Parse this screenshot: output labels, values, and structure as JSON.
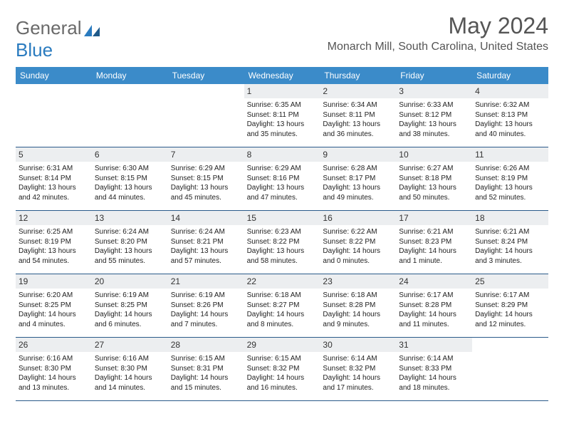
{
  "logo": {
    "part1": "General",
    "part2": "Blue"
  },
  "header": {
    "month_title": "May 2024",
    "location": "Monarch Mill, South Carolina, United States"
  },
  "days_of_week": [
    "Sunday",
    "Monday",
    "Tuesday",
    "Wednesday",
    "Thursday",
    "Friday",
    "Saturday"
  ],
  "colors": {
    "header_bg": "#3b8bc9",
    "daynum_bg": "#eceef0",
    "row_border": "#2a5a8a"
  },
  "weeks": [
    [
      {
        "empty": true
      },
      {
        "empty": true
      },
      {
        "empty": true
      },
      {
        "num": "1",
        "sunrise": "Sunrise: 6:35 AM",
        "sunset": "Sunset: 8:11 PM",
        "daylight": "Daylight: 13 hours and 35 minutes."
      },
      {
        "num": "2",
        "sunrise": "Sunrise: 6:34 AM",
        "sunset": "Sunset: 8:11 PM",
        "daylight": "Daylight: 13 hours and 36 minutes."
      },
      {
        "num": "3",
        "sunrise": "Sunrise: 6:33 AM",
        "sunset": "Sunset: 8:12 PM",
        "daylight": "Daylight: 13 hours and 38 minutes."
      },
      {
        "num": "4",
        "sunrise": "Sunrise: 6:32 AM",
        "sunset": "Sunset: 8:13 PM",
        "daylight": "Daylight: 13 hours and 40 minutes."
      }
    ],
    [
      {
        "num": "5",
        "sunrise": "Sunrise: 6:31 AM",
        "sunset": "Sunset: 8:14 PM",
        "daylight": "Daylight: 13 hours and 42 minutes."
      },
      {
        "num": "6",
        "sunrise": "Sunrise: 6:30 AM",
        "sunset": "Sunset: 8:15 PM",
        "daylight": "Daylight: 13 hours and 44 minutes."
      },
      {
        "num": "7",
        "sunrise": "Sunrise: 6:29 AM",
        "sunset": "Sunset: 8:15 PM",
        "daylight": "Daylight: 13 hours and 45 minutes."
      },
      {
        "num": "8",
        "sunrise": "Sunrise: 6:29 AM",
        "sunset": "Sunset: 8:16 PM",
        "daylight": "Daylight: 13 hours and 47 minutes."
      },
      {
        "num": "9",
        "sunrise": "Sunrise: 6:28 AM",
        "sunset": "Sunset: 8:17 PM",
        "daylight": "Daylight: 13 hours and 49 minutes."
      },
      {
        "num": "10",
        "sunrise": "Sunrise: 6:27 AM",
        "sunset": "Sunset: 8:18 PM",
        "daylight": "Daylight: 13 hours and 50 minutes."
      },
      {
        "num": "11",
        "sunrise": "Sunrise: 6:26 AM",
        "sunset": "Sunset: 8:19 PM",
        "daylight": "Daylight: 13 hours and 52 minutes."
      }
    ],
    [
      {
        "num": "12",
        "sunrise": "Sunrise: 6:25 AM",
        "sunset": "Sunset: 8:19 PM",
        "daylight": "Daylight: 13 hours and 54 minutes."
      },
      {
        "num": "13",
        "sunrise": "Sunrise: 6:24 AM",
        "sunset": "Sunset: 8:20 PM",
        "daylight": "Daylight: 13 hours and 55 minutes."
      },
      {
        "num": "14",
        "sunrise": "Sunrise: 6:24 AM",
        "sunset": "Sunset: 8:21 PM",
        "daylight": "Daylight: 13 hours and 57 minutes."
      },
      {
        "num": "15",
        "sunrise": "Sunrise: 6:23 AM",
        "sunset": "Sunset: 8:22 PM",
        "daylight": "Daylight: 13 hours and 58 minutes."
      },
      {
        "num": "16",
        "sunrise": "Sunrise: 6:22 AM",
        "sunset": "Sunset: 8:22 PM",
        "daylight": "Daylight: 14 hours and 0 minutes."
      },
      {
        "num": "17",
        "sunrise": "Sunrise: 6:21 AM",
        "sunset": "Sunset: 8:23 PM",
        "daylight": "Daylight: 14 hours and 1 minute."
      },
      {
        "num": "18",
        "sunrise": "Sunrise: 6:21 AM",
        "sunset": "Sunset: 8:24 PM",
        "daylight": "Daylight: 14 hours and 3 minutes."
      }
    ],
    [
      {
        "num": "19",
        "sunrise": "Sunrise: 6:20 AM",
        "sunset": "Sunset: 8:25 PM",
        "daylight": "Daylight: 14 hours and 4 minutes."
      },
      {
        "num": "20",
        "sunrise": "Sunrise: 6:19 AM",
        "sunset": "Sunset: 8:25 PM",
        "daylight": "Daylight: 14 hours and 6 minutes."
      },
      {
        "num": "21",
        "sunrise": "Sunrise: 6:19 AM",
        "sunset": "Sunset: 8:26 PM",
        "daylight": "Daylight: 14 hours and 7 minutes."
      },
      {
        "num": "22",
        "sunrise": "Sunrise: 6:18 AM",
        "sunset": "Sunset: 8:27 PM",
        "daylight": "Daylight: 14 hours and 8 minutes."
      },
      {
        "num": "23",
        "sunrise": "Sunrise: 6:18 AM",
        "sunset": "Sunset: 8:28 PM",
        "daylight": "Daylight: 14 hours and 9 minutes."
      },
      {
        "num": "24",
        "sunrise": "Sunrise: 6:17 AM",
        "sunset": "Sunset: 8:28 PM",
        "daylight": "Daylight: 14 hours and 11 minutes."
      },
      {
        "num": "25",
        "sunrise": "Sunrise: 6:17 AM",
        "sunset": "Sunset: 8:29 PM",
        "daylight": "Daylight: 14 hours and 12 minutes."
      }
    ],
    [
      {
        "num": "26",
        "sunrise": "Sunrise: 6:16 AM",
        "sunset": "Sunset: 8:30 PM",
        "daylight": "Daylight: 14 hours and 13 minutes."
      },
      {
        "num": "27",
        "sunrise": "Sunrise: 6:16 AM",
        "sunset": "Sunset: 8:30 PM",
        "daylight": "Daylight: 14 hours and 14 minutes."
      },
      {
        "num": "28",
        "sunrise": "Sunrise: 6:15 AM",
        "sunset": "Sunset: 8:31 PM",
        "daylight": "Daylight: 14 hours and 15 minutes."
      },
      {
        "num": "29",
        "sunrise": "Sunrise: 6:15 AM",
        "sunset": "Sunset: 8:32 PM",
        "daylight": "Daylight: 14 hours and 16 minutes."
      },
      {
        "num": "30",
        "sunrise": "Sunrise: 6:14 AM",
        "sunset": "Sunset: 8:32 PM",
        "daylight": "Daylight: 14 hours and 17 minutes."
      },
      {
        "num": "31",
        "sunrise": "Sunrise: 6:14 AM",
        "sunset": "Sunset: 8:33 PM",
        "daylight": "Daylight: 14 hours and 18 minutes."
      },
      {
        "empty": true
      }
    ]
  ]
}
